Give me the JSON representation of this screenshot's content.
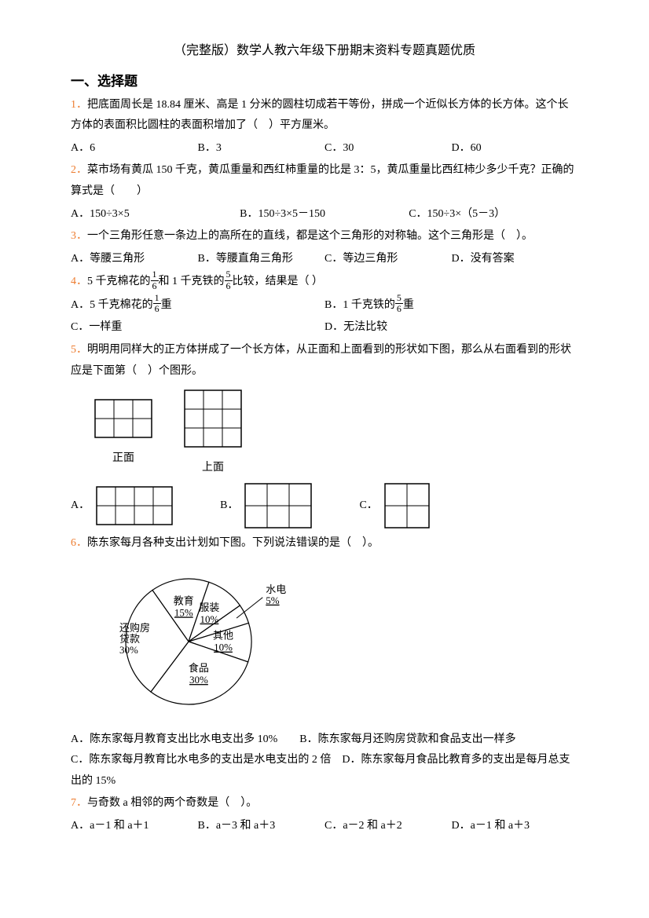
{
  "title": "（完整版）数学人教六年级下册期末资料专题真题优质",
  "sectionHeader": "一、选择题",
  "q1": {
    "num": "1．",
    "text": "把底面周长是 18.84 厘米、高是 1 分米的圆柱切成若干等份，拼成一个近似长方体的长方体。这个长方体的表面积比圆柱的表面积增加了（　）平方厘米。",
    "opts": [
      "A．6",
      "B．3",
      "C．30",
      "D．60"
    ]
  },
  "q2": {
    "num": "2．",
    "text": "菜市场有黄瓜 150 千克，黄瓜重量和西红柿重量的比是 3：5，黄瓜重量比西红柿少多少千克？正确的算式是（　　）",
    "opts": [
      "A．150÷3×5",
      "B．150÷3×5－150",
      "C．150÷3×（5－3）"
    ]
  },
  "q3": {
    "num": "3．",
    "text": "一个三角形任意一条边上的高所在的直线，都是这个三角形的对称轴。这个三角形是（　）。",
    "opts": [
      "A．等腰三角形",
      "B．等腰直角三角形",
      "C．等边三角形",
      "D．没有答案"
    ]
  },
  "q4": {
    "num": "4．",
    "textPrefix": "5 千克棉花的",
    "textMid": "和 1 千克铁的",
    "textSuffix": "比较，结果是（ ）",
    "frac1": {
      "num": "1",
      "den": "6"
    },
    "frac2": {
      "num": "5",
      "den": "6"
    },
    "optA": "A．5 千克棉花的",
    "optASuffix": "重",
    "optB": "B．1 千克铁的",
    "optBSuffix": "重",
    "optC": "C．一样重",
    "optD": "D．无法比较"
  },
  "q5": {
    "num": "5．",
    "text": "明明用同样大的正方体拼成了一个长方体，从正面和上面看到的形状如下图，那么从右面看到的形状应是下面第（　）个图形。",
    "frontLabel": "正面",
    "topLabel": "上面",
    "frontGrid": {
      "cols": 3,
      "rows": 2,
      "cellSize": 24
    },
    "topGrid": {
      "cols": 3,
      "rows": 3,
      "cellSize": 24
    },
    "answers": {
      "A": {
        "cols": 4,
        "rows": 2,
        "cellSize": 24
      },
      "B": {
        "cols": 3,
        "rows": 2,
        "cellSize": 28
      },
      "C": {
        "cols": 2,
        "rows": 2,
        "cellSize": 28
      }
    },
    "ansLabels": [
      "A．",
      "B．",
      "C．"
    ]
  },
  "q6": {
    "num": "6．",
    "text": "陈东家每月各种支出计划如下图。下列说法错误的是（　）。",
    "pie": {
      "size": 200,
      "slices": [
        {
          "label": "教育",
          "percent": "15%",
          "value": 15,
          "color": "#ffffff"
        },
        {
          "label": "服装",
          "percent": "10%",
          "value": 10,
          "color": "#ffffff"
        },
        {
          "label": "水电",
          "percent": "5%",
          "value": 5,
          "color": "#ffffff",
          "external": true
        },
        {
          "label": "其他",
          "percent": "10%",
          "value": 10,
          "color": "#ffffff"
        },
        {
          "label": "食品",
          "percent": "30%",
          "value": 30,
          "color": "#ffffff"
        },
        {
          "label": "还购房贷款",
          "percent": "30%",
          "value": 30,
          "color": "#ffffff"
        }
      ]
    },
    "opts": [
      "A．陈东家每月教育支出比水电支出多 10%",
      "B．陈东家每月还购房贷款和食品支出一样多",
      "C．陈东家每月教育比水电多的支出是水电支出的 2 倍",
      "D．陈东家每月食品比教育多的支出是每月总支出的 15%"
    ]
  },
  "q7": {
    "num": "7．",
    "text": "与奇数 a 相邻的两个奇数是（　）。",
    "opts": [
      "A．a－1 和 a＋1",
      "B．a－3 和 a＋3",
      "C．a－2 和 a＋2",
      "D．a－1 和 a＋3"
    ]
  }
}
